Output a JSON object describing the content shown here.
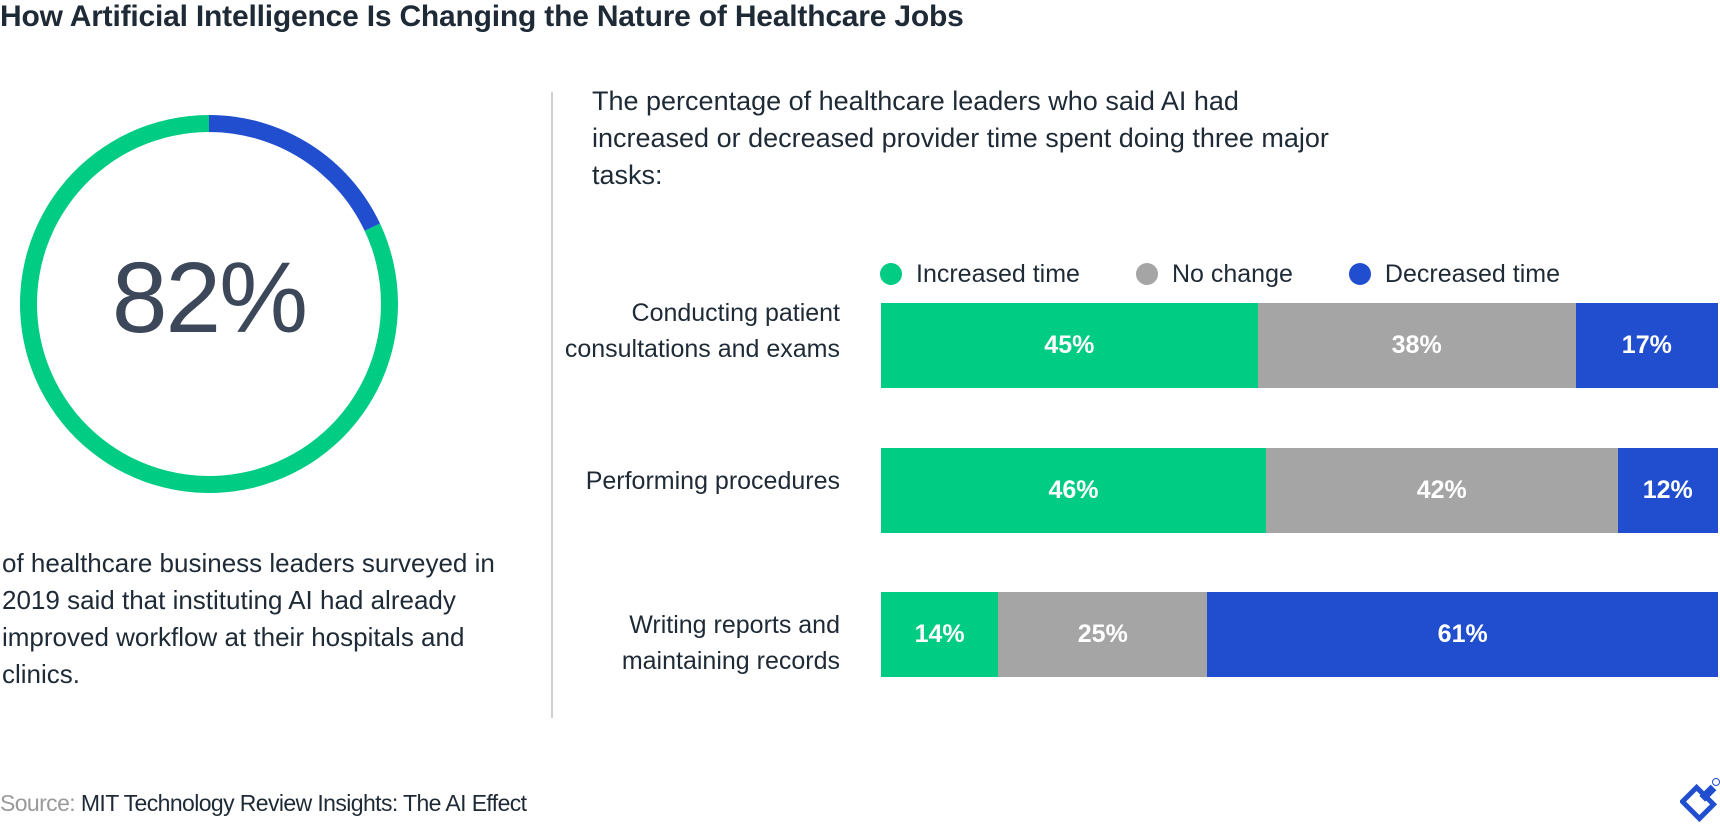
{
  "title": "How Artificial Intelligence Is Changing the Nature of Healthcare Jobs",
  "colors": {
    "increased": "#00cc83",
    "no_change": "#a5a5a5",
    "decreased": "#204ecf",
    "text": "#1e2a36",
    "donut_text": "#3c4759"
  },
  "donut": {
    "value": 82,
    "label": "82%",
    "description": "of healthcare business leaders surveyed in 2019 said that instituting AI had already improved workflow at their hospitals and clinics."
  },
  "subtitle": "The percentage of healthcare leaders who said AI had increased or decreased provider time spent doing three major tasks:",
  "chart_data": [
    {
      "type": "pie",
      "values": [
        82,
        18
      ],
      "labels": [
        "82%",
        ""
      ],
      "colors": [
        "#00cc83",
        "#204ecf"
      ]
    },
    {
      "type": "bar",
      "stacked": true,
      "orientation": "horizontal",
      "categories": [
        "Conducting patient consultations and exams",
        "Performing procedures",
        "Writing reports and maintaining records"
      ],
      "series": [
        {
          "name": "Increased time",
          "color": "#00cc83",
          "values": [
            45,
            46,
            14
          ],
          "labels": [
            "45%",
            "46%",
            "14%"
          ]
        },
        {
          "name": "No change",
          "color": "#a5a5a5",
          "values": [
            38,
            42,
            25
          ],
          "labels": [
            "38%",
            "42%",
            "25%"
          ]
        },
        {
          "name": "Decreased time",
          "color": "#204ecf",
          "values": [
            17,
            12,
            61
          ],
          "labels": [
            "17%",
            "12%",
            "61%"
          ]
        }
      ],
      "xlim": [
        0,
        100
      ],
      "legend": "top"
    }
  ],
  "source": {
    "label": "Source:",
    "text": "MIT Technology Review Insights: The AI Effect"
  },
  "logo_icon": "toptal-logo-icon"
}
